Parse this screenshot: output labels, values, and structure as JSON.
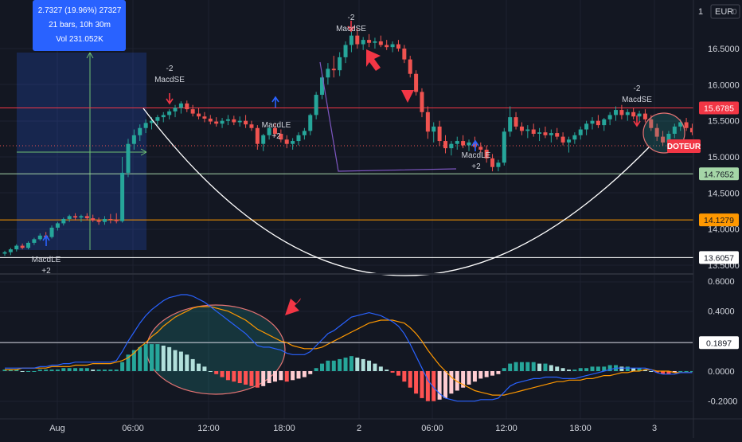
{
  "currency_label": "EUR",
  "currency_badge": "0",
  "measure_tooltip": {
    "line1": "2.7327 (19.96%) 27327",
    "line2": "21 bars, 10h 30m",
    "line3": "Vol 231.052K"
  },
  "price_axis": {
    "ticks": [
      "16.5000",
      "16.0000",
      "15.5000",
      "15.0000",
      "14.5000",
      "14.0000",
      "13.5000"
    ],
    "partial_top": "1"
  },
  "price_badges": [
    {
      "text": "15.6785",
      "bg": "#f23645",
      "fg": "#ffffff"
    },
    {
      "text": "14.7652",
      "bg": "#a5d6a7",
      "fg": "#131722"
    },
    {
      "text": "14.1279",
      "bg": "#ff9800",
      "fg": "#131722"
    },
    {
      "text": "13.6057",
      "bg": "#ffffff",
      "fg": "#131722"
    }
  ],
  "macd_axis": {
    "ticks": [
      "0.6000",
      "0.4000",
      "0.2000",
      "0.0000",
      "-0.2000"
    ],
    "badge": "0.1897"
  },
  "time_axis": [
    "Aug",
    "06:00",
    "12:00",
    "18:00",
    "2",
    "06:00",
    "12:00",
    "18:00",
    "3"
  ],
  "signals": [
    {
      "l1": "-2",
      "l2": "MacdSE"
    },
    {
      "l1": "-2",
      "l2": "MacdSE"
    },
    {
      "l1": "-2",
      "l2": "MacdSE"
    },
    {
      "l1": "MacdLE",
      "l2": "+2"
    },
    {
      "l1": "MacdLE",
      "l2": "+2"
    },
    {
      "l1": "MacdLE",
      "l2": "+2"
    }
  ],
  "doteur_label": "DOTEUR",
  "colors": {
    "background": "#131722",
    "bull": "#26a69a",
    "bear": "#ef5350",
    "hist_pos_strong": "#26a69a",
    "hist_pos_weak": "#b2dfdb",
    "hist_neg_strong": "#ff5252",
    "hist_neg_weak": "#ffcdd2",
    "macd_line": "#2962ff",
    "signal_line": "#ff9800",
    "resistance": "#f23645",
    "support_green": "#a5d6a7",
    "support_orange": "#ff9800",
    "annotation_arrow": "#f23645"
  },
  "chart_data": {
    "type": "candlestick",
    "symbol": "DOTEUR",
    "price_range": [
      13.45,
      17.05
    ],
    "horizontal_levels": [
      15.6785,
      14.7652,
      14.1279,
      13.6057
    ],
    "candles": [
      [
        13.66,
        13.7,
        13.63,
        13.68
      ],
      [
        13.68,
        13.74,
        13.64,
        13.72
      ],
      [
        13.72,
        13.79,
        13.69,
        13.77
      ],
      [
        13.77,
        13.8,
        13.72,
        13.74
      ],
      [
        13.74,
        13.83,
        13.72,
        13.81
      ],
      [
        13.81,
        13.88,
        13.78,
        13.86
      ],
      [
        13.86,
        13.94,
        13.84,
        13.91
      ],
      [
        13.91,
        13.96,
        13.86,
        13.89
      ],
      [
        13.89,
        14.05,
        13.87,
        14.02
      ],
      [
        14.02,
        14.1,
        13.98,
        14.08
      ],
      [
        14.08,
        14.16,
        14.05,
        14.14
      ],
      [
        14.14,
        14.2,
        14.1,
        14.18
      ],
      [
        14.18,
        14.22,
        14.12,
        14.16
      ],
      [
        14.16,
        14.2,
        14.1,
        14.18
      ],
      [
        14.18,
        14.22,
        14.12,
        14.15
      ],
      [
        14.15,
        14.2,
        14.1,
        14.12
      ],
      [
        14.12,
        14.16,
        14.06,
        14.1
      ],
      [
        14.1,
        14.18,
        14.06,
        14.14
      ],
      [
        14.14,
        14.21,
        14.08,
        14.13
      ],
      [
        14.13,
        14.22,
        14.08,
        14.11
      ],
      [
        14.11,
        15.0,
        14.09,
        14.78
      ],
      [
        14.78,
        15.25,
        14.72,
        15.18
      ],
      [
        15.18,
        15.38,
        15.1,
        15.3
      ],
      [
        15.3,
        15.45,
        15.22,
        15.4
      ],
      [
        15.4,
        15.52,
        15.33,
        15.47
      ],
      [
        15.47,
        15.55,
        15.38,
        15.5
      ],
      [
        15.5,
        15.58,
        15.44,
        15.55
      ],
      [
        15.55,
        15.62,
        15.48,
        15.58
      ],
      [
        15.58,
        15.66,
        15.52,
        15.63
      ],
      [
        15.63,
        15.72,
        15.55,
        15.68
      ],
      [
        15.68,
        15.77,
        15.6,
        15.74
      ],
      [
        15.74,
        15.78,
        15.62,
        15.66
      ],
      [
        15.66,
        15.72,
        15.56,
        15.6
      ],
      [
        15.6,
        15.68,
        15.52,
        15.56
      ],
      [
        15.56,
        15.62,
        15.48,
        15.53
      ],
      [
        15.53,
        15.58,
        15.45,
        15.49
      ],
      [
        15.49,
        15.55,
        15.42,
        15.46
      ],
      [
        15.46,
        15.54,
        15.4,
        15.5
      ],
      [
        15.5,
        15.58,
        15.44,
        15.52
      ],
      [
        15.52,
        15.57,
        15.44,
        15.48
      ],
      [
        15.48,
        15.56,
        15.42,
        15.5
      ],
      [
        15.5,
        15.58,
        15.4,
        15.45
      ],
      [
        15.45,
        15.5,
        15.36,
        15.4
      ],
      [
        15.4,
        15.44,
        15.1,
        15.18
      ],
      [
        15.18,
        15.32,
        15.08,
        15.3
      ],
      [
        15.3,
        15.44,
        15.24,
        15.4
      ],
      [
        15.4,
        15.46,
        15.28,
        15.32
      ],
      [
        15.32,
        15.38,
        15.2,
        15.24
      ],
      [
        15.24,
        15.3,
        15.12,
        15.18
      ],
      [
        15.18,
        15.26,
        15.1,
        15.22
      ],
      [
        15.22,
        15.34,
        15.16,
        15.3
      ],
      [
        15.3,
        15.4,
        15.24,
        15.36
      ],
      [
        15.36,
        15.6,
        15.3,
        15.58
      ],
      [
        15.58,
        15.9,
        15.52,
        15.86
      ],
      [
        15.86,
        16.15,
        15.8,
        16.1
      ],
      [
        16.1,
        16.3,
        16.0,
        16.22
      ],
      [
        16.22,
        16.4,
        16.1,
        16.2
      ],
      [
        16.2,
        16.45,
        16.12,
        16.38
      ],
      [
        16.38,
        16.6,
        16.3,
        16.55
      ],
      [
        16.55,
        16.75,
        16.45,
        16.68
      ],
      [
        16.68,
        16.78,
        16.5,
        16.56
      ],
      [
        16.56,
        16.66,
        16.48,
        16.62
      ],
      [
        16.62,
        16.7,
        16.52,
        16.58
      ],
      [
        16.58,
        16.65,
        16.5,
        16.6
      ],
      [
        16.6,
        16.68,
        16.52,
        16.55
      ],
      [
        16.55,
        16.62,
        16.48,
        16.52
      ],
      [
        16.52,
        16.6,
        16.45,
        16.56
      ],
      [
        16.56,
        16.62,
        16.46,
        16.5
      ],
      [
        16.5,
        16.55,
        16.3,
        16.35
      ],
      [
        16.35,
        16.4,
        16.1,
        16.15
      ],
      [
        16.15,
        16.2,
        15.85,
        15.9
      ],
      [
        15.9,
        15.95,
        15.55,
        15.62
      ],
      [
        15.62,
        15.7,
        15.25,
        15.35
      ],
      [
        15.35,
        15.48,
        15.2,
        15.42
      ],
      [
        15.42,
        15.5,
        15.15,
        15.22
      ],
      [
        15.22,
        15.3,
        15.05,
        15.12
      ],
      [
        15.12,
        15.22,
        15.02,
        15.18
      ],
      [
        15.18,
        15.28,
        15.1,
        15.22
      ],
      [
        15.22,
        15.3,
        15.12,
        15.16
      ],
      [
        15.16,
        15.24,
        15.08,
        15.2
      ],
      [
        15.2,
        15.28,
        15.12,
        15.14
      ],
      [
        15.14,
        15.2,
        15.06,
        15.1
      ],
      [
        15.1,
        15.16,
        14.92,
        14.98
      ],
      [
        14.98,
        15.04,
        14.8,
        14.86
      ],
      [
        14.86,
        14.96,
        14.8,
        14.92
      ],
      [
        14.92,
        15.4,
        14.88,
        15.35
      ],
      [
        15.35,
        15.7,
        15.28,
        15.55
      ],
      [
        15.55,
        15.62,
        15.38,
        15.42
      ],
      [
        15.42,
        15.48,
        15.3,
        15.36
      ],
      [
        15.36,
        15.44,
        15.26,
        15.38
      ],
      [
        15.38,
        15.46,
        15.28,
        15.32
      ],
      [
        15.32,
        15.4,
        15.22,
        15.34
      ],
      [
        15.34,
        15.42,
        15.26,
        15.3
      ],
      [
        15.3,
        15.38,
        15.2,
        15.33
      ],
      [
        15.33,
        15.4,
        15.24,
        15.28
      ],
      [
        15.28,
        15.34,
        15.16,
        15.2
      ],
      [
        15.2,
        15.28,
        15.06,
        15.24
      ],
      [
        15.24,
        15.34,
        15.18,
        15.3
      ],
      [
        15.3,
        15.42,
        15.24,
        15.38
      ],
      [
        15.38,
        15.5,
        15.3,
        15.46
      ],
      [
        15.46,
        15.55,
        15.38,
        15.5
      ],
      [
        15.5,
        15.58,
        15.4,
        15.44
      ],
      [
        15.44,
        15.54,
        15.36,
        15.52
      ],
      [
        15.52,
        15.62,
        15.44,
        15.58
      ],
      [
        15.58,
        15.7,
        15.5,
        15.65
      ],
      [
        15.65,
        15.72,
        15.52,
        15.58
      ],
      [
        15.58,
        15.66,
        15.5,
        15.62
      ],
      [
        15.62,
        15.68,
        15.52,
        15.56
      ],
      [
        15.56,
        15.64,
        15.48,
        15.6
      ],
      [
        15.6,
        15.66,
        15.48,
        15.52
      ],
      [
        15.52,
        15.58,
        15.36,
        15.4
      ],
      [
        15.4,
        15.46,
        15.22,
        15.28
      ],
      [
        15.28,
        15.36,
        15.16,
        15.2
      ],
      [
        15.2,
        15.36,
        15.14,
        15.32
      ],
      [
        15.32,
        15.46,
        15.26,
        15.42
      ],
      [
        15.42,
        15.52,
        15.36,
        15.48
      ],
      [
        15.48,
        15.54,
        15.36,
        15.4
      ],
      [
        15.4,
        15.46,
        15.3,
        15.34
      ]
    ],
    "macd": [
      0.02,
      0.02,
      0.02,
      0.02,
      0.02,
      0.02,
      0.03,
      0.03,
      0.04,
      0.04,
      0.05,
      0.05,
      0.06,
      0.06,
      0.06,
      0.06,
      0.06,
      0.06,
      0.06,
      0.07,
      0.13,
      0.2,
      0.26,
      0.32,
      0.37,
      0.41,
      0.44,
      0.47,
      0.49,
      0.5,
      0.51,
      0.51,
      0.5,
      0.48,
      0.46,
      0.43,
      0.4,
      0.37,
      0.34,
      0.31,
      0.28,
      0.25,
      0.21,
      0.17,
      0.16,
      0.16,
      0.15,
      0.14,
      0.12,
      0.11,
      0.11,
      0.11,
      0.13,
      0.17,
      0.21,
      0.25,
      0.27,
      0.3,
      0.33,
      0.36,
      0.37,
      0.38,
      0.39,
      0.38,
      0.37,
      0.35,
      0.33,
      0.3,
      0.25,
      0.18,
      0.1,
      0.02,
      -0.06,
      -0.11,
      -0.15,
      -0.18,
      -0.19,
      -0.2,
      -0.2,
      -0.2,
      -0.2,
      -0.19,
      -0.19,
      -0.19,
      -0.18,
      -0.14,
      -0.1,
      -0.08,
      -0.07,
      -0.06,
      -0.05,
      -0.05,
      -0.04,
      -0.04,
      -0.04,
      -0.05,
      -0.05,
      -0.05,
      -0.04,
      -0.03,
      -0.02,
      -0.01,
      0,
      0.01,
      0.02,
      0.02,
      0.02,
      0.02,
      0.02,
      0.02,
      0.01,
      -0.01,
      -0.02,
      -0.02,
      -0.02,
      -0.01,
      -0.01,
      -0.01
    ],
    "signal": [
      0.01,
      0.01,
      0.01,
      0.02,
      0.02,
      0.02,
      0.02,
      0.02,
      0.03,
      0.03,
      0.03,
      0.03,
      0.04,
      0.04,
      0.04,
      0.05,
      0.05,
      0.05,
      0.05,
      0.06,
      0.07,
      0.09,
      0.12,
      0.16,
      0.19,
      0.23,
      0.26,
      0.3,
      0.33,
      0.36,
      0.38,
      0.4,
      0.42,
      0.43,
      0.43,
      0.43,
      0.42,
      0.41,
      0.4,
      0.38,
      0.36,
      0.34,
      0.31,
      0.28,
      0.26,
      0.24,
      0.22,
      0.2,
      0.19,
      0.17,
      0.16,
      0.15,
      0.15,
      0.15,
      0.16,
      0.18,
      0.2,
      0.22,
      0.24,
      0.26,
      0.28,
      0.3,
      0.32,
      0.33,
      0.34,
      0.34,
      0.34,
      0.33,
      0.32,
      0.29,
      0.25,
      0.2,
      0.14,
      0.09,
      0.04,
      0,
      -0.04,
      -0.07,
      -0.09,
      -0.11,
      -0.13,
      -0.14,
      -0.15,
      -0.16,
      -0.16,
      -0.16,
      -0.15,
      -0.14,
      -0.13,
      -0.12,
      -0.11,
      -0.1,
      -0.09,
      -0.08,
      -0.07,
      -0.07,
      -0.06,
      -0.06,
      -0.06,
      -0.05,
      -0.05,
      -0.04,
      -0.03,
      -0.03,
      -0.02,
      -0.01,
      -0.01,
      0,
      0,
      0.01,
      0.01,
      0,
      0,
      0,
      -0.01,
      -0.01,
      -0.01,
      -0.01
    ],
    "histogram": [
      0.01,
      0.01,
      0.01,
      0,
      0,
      0,
      0.01,
      0.01,
      0.01,
      0.01,
      0.02,
      0.02,
      0.02,
      0.02,
      0.02,
      0.01,
      0.01,
      0.01,
      0.01,
      0.01,
      0.06,
      0.11,
      0.14,
      0.16,
      0.18,
      0.18,
      0.18,
      0.17,
      0.16,
      0.14,
      0.13,
      0.11,
      0.08,
      0.05,
      0.03,
      0,
      -0.02,
      -0.04,
      -0.06,
      -0.07,
      -0.08,
      -0.09,
      -0.1,
      -0.11,
      -0.1,
      -0.08,
      -0.07,
      -0.06,
      -0.07,
      -0.06,
      -0.05,
      -0.04,
      -0.02,
      0.02,
      0.05,
      0.07,
      0.07,
      0.08,
      0.09,
      0.1,
      0.09,
      0.08,
      0.07,
      0.05,
      0.03,
      0.01,
      -0.01,
      -0.03,
      -0.07,
      -0.11,
      -0.15,
      -0.18,
      -0.2,
      -0.2,
      -0.19,
      -0.18,
      -0.15,
      -0.13,
      -0.11,
      -0.09,
      -0.07,
      -0.05,
      -0.04,
      -0.03,
      -0.02,
      0.02,
      0.05,
      0.06,
      0.06,
      0.06,
      0.06,
      0.05,
      0.05,
      0.04,
      0.03,
      0.02,
      0.01,
      0.01,
      0.02,
      0.02,
      0.03,
      0.03,
      0.03,
      0.04,
      0.04,
      0.03,
      0.03,
      0.02,
      0.02,
      0.01,
      0,
      -0.01,
      -0.02,
      -0.02,
      -0.01,
      0,
      0,
      0
    ],
    "macd_range": [
      -0.25,
      0.6
    ],
    "macd_level": 0.1897
  }
}
